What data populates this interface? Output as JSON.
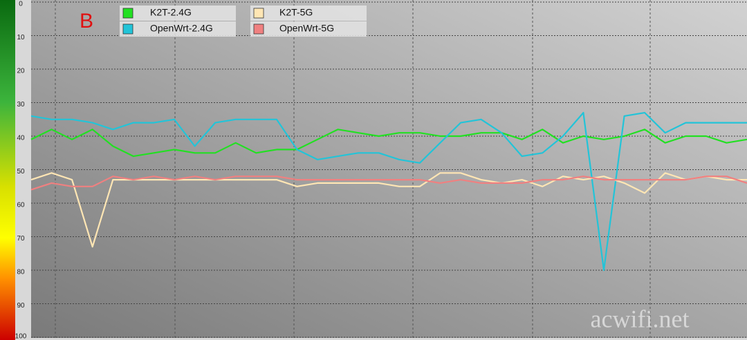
{
  "chart_data": {
    "type": "line",
    "annotation": "B",
    "watermark": "acwifi.net",
    "ylim": [
      0,
      100
    ],
    "y_inverted": true,
    "yticks": [
      0,
      10,
      20,
      30,
      40,
      50,
      60,
      70,
      80,
      90,
      100
    ],
    "grid": true,
    "legend": "top-left",
    "series": [
      {
        "name": "K2T-2.4G",
        "color": "#22e022",
        "values": [
          41,
          38,
          41,
          38,
          43,
          46,
          45,
          44,
          45,
          45,
          42,
          45,
          44,
          44,
          41,
          38,
          39,
          40,
          39,
          39,
          40,
          40,
          39,
          39,
          41,
          38,
          42,
          40,
          41,
          40,
          38,
          42,
          40,
          40,
          42,
          41
        ]
      },
      {
        "name": "OpenWrt-2.4G",
        "color": "#22c4d8",
        "values": [
          34,
          35,
          35,
          36,
          38,
          36,
          36,
          35,
          43,
          36,
          35,
          35,
          35,
          44,
          47,
          46,
          45,
          45,
          47,
          48,
          42,
          36,
          35,
          39,
          46,
          45,
          40,
          33,
          80,
          34,
          33,
          39,
          36,
          36,
          36,
          36
        ]
      },
      {
        "name": "K2T-5G",
        "color": "#ffe6b4",
        "values": [
          53,
          51,
          53,
          73,
          53,
          53,
          53,
          53,
          53,
          53,
          53,
          53,
          53,
          55,
          54,
          54,
          54,
          54,
          55,
          55,
          51,
          51,
          53,
          54,
          53,
          55,
          52,
          53,
          52,
          54,
          57,
          51,
          53,
          52,
          53,
          53
        ]
      },
      {
        "name": "OpenWrt-5G",
        "color": "#f08080",
        "values": [
          56,
          54,
          55,
          55,
          52,
          53,
          52,
          53,
          52,
          53,
          52,
          52,
          52,
          53,
          53,
          53,
          53,
          53,
          53,
          53,
          54,
          53,
          54,
          54,
          54,
          53,
          53,
          52,
          53,
          53,
          53,
          53,
          53,
          52,
          52,
          54
        ]
      }
    ]
  }
}
